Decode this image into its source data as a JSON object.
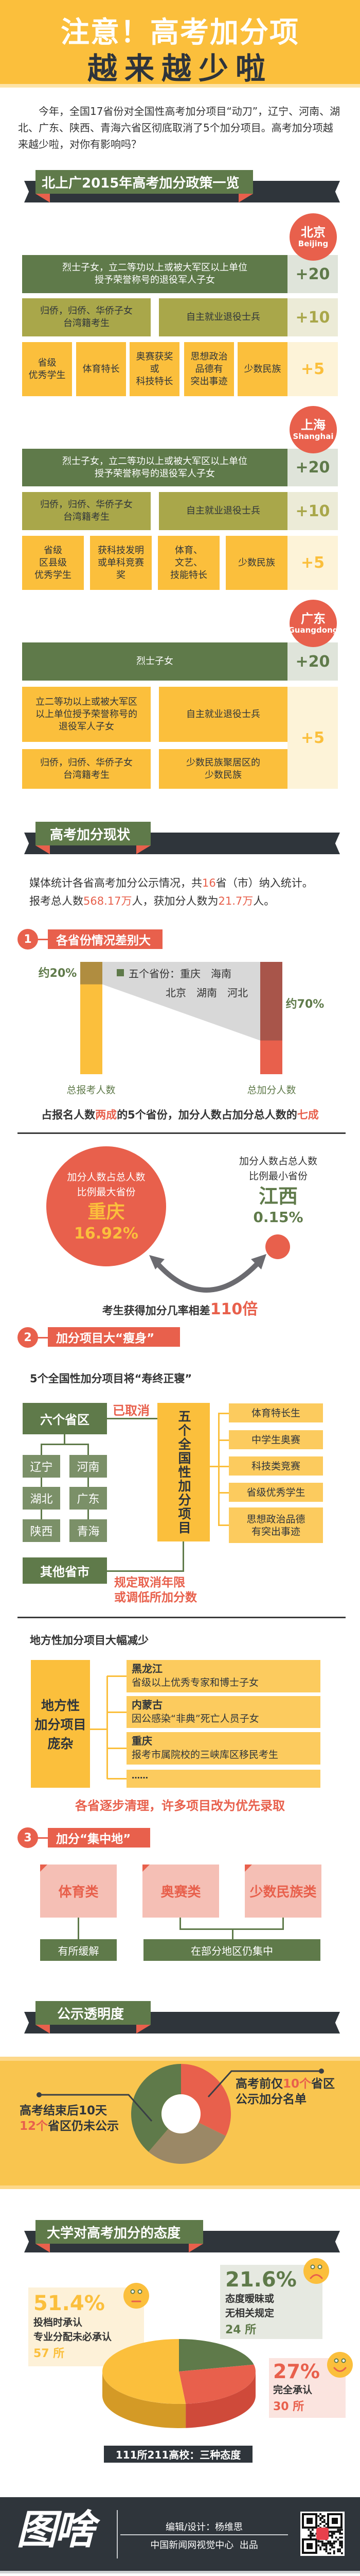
{
  "header": {
    "title_line1": "注意！高考加分项",
    "title_line2": "越来越少啦"
  },
  "intro": {
    "text": "今年，全国17省份对全国性高考加分项目“动刀”，辽宁、河南、湖北、广东、陕西、青海六省区彻底取消了5个加分项目。高考加分项越来越少啦，对你有影响吗？"
  },
  "policy": {
    "title": "北上广2015年高考加分政策一览",
    "regions": [
      {
        "name": "北京",
        "name_en": "Beijing",
        "cells": [
          "烈士子女，立二等功以上或被大军区以上单位\n授予荣誉称号的退役军人子女",
          "归侨，归侨、华侨子女\n台湾籍考生",
          "自主就业退役士兵",
          "省级\n优秀学生",
          "体育特长",
          "奥赛获奖\n或\n科技特长",
          "思想政治\n品德有\n突出事迹",
          "少数民族"
        ],
        "scores": [
          "+20",
          "+10",
          "+5"
        ]
      },
      {
        "name": "上海",
        "name_en": "Shanghai",
        "cells": [
          "烈士子女，立二等功以上或被大军区以上单位\n授予荣誉称号的退役军人子女",
          "归侨，归侨、华侨子女\n台湾籍考生",
          "自主就业退役士兵",
          "省级\n区县级\n优秀学生",
          "获科技发明\n或单科竞赛\n奖",
          "体育、\n文艺、\n技能特长",
          "少数民族"
        ],
        "scores": [
          "+20",
          "+10",
          "+5"
        ]
      },
      {
        "name": "广东",
        "name_en": "Guangdong",
        "cells": [
          "烈士子女",
          "立二等功以上或被大军区\n以上单位授予荣誉称号的\n退役军人子女",
          "自主就业退役士兵",
          "归侨，归侨、华侨子女\n台湾籍考生",
          "少数民族聚居区的\n少数民族"
        ],
        "scores": [
          "+20",
          "+5"
        ]
      }
    ]
  },
  "status": {
    "title": "高考加分现状",
    "stat_parts": [
      "媒体统计各省高考加分公示情况，共",
      "16",
      "省（市）纳入统计。",
      "报考总人数",
      "568.17万",
      "人，获加分人数为",
      "21.7万",
      "人。"
    ],
    "section1": {
      "number": "1",
      "title": "各省份情况差别大"
    },
    "chart_data": {
      "type": "bar",
      "categories": [
        "总报考人数",
        "总加分人数"
      ],
      "series": [
        {
          "name": "五个省份：重庆　海南　北京　湖南　河北",
          "values": [
            20,
            70
          ]
        }
      ],
      "labels": [
        "约20%",
        "约70%"
      ],
      "legend_line1": "五个省份：重庆　海南",
      "legend_line2": "北京　湖南　河北",
      "ylim": [
        0,
        100
      ]
    },
    "summary_parts": [
      "占报名人数",
      "两成",
      "的5个省份，加分人数占加分总人数的",
      "七成"
    ],
    "max": {
      "label_line1": "加分人数占总人数",
      "label_line2": "比例最大省份",
      "province": "重庆",
      "value": "16.92%"
    },
    "min": {
      "label_line1": "加分人数占总人数",
      "label_line2": "比例最小省份",
      "province": "江西",
      "value": "0.15%"
    },
    "gap_parts": [
      "考生获得加分几率相差",
      "110倍"
    ],
    "section2": {
      "number": "2",
      "title": "加分项目大“瘦身”"
    },
    "national_title": "5个全国性加分项目将“寿终正寝”",
    "six": {
      "label": "六个省区",
      "provinces": [
        "辽宁",
        "河南",
        "湖北",
        "广东",
        "陕西",
        "青海"
      ],
      "status": "已取消"
    },
    "five": {
      "label": "五个全国性加分项目",
      "items": [
        "体育特长生",
        "中学生奥赛",
        "科技类竞赛",
        "省级优秀学生",
        "思想政治品德\n有突出事迹"
      ]
    },
    "others": {
      "label": "其他省市",
      "note_line1": "规定取消年限",
      "note_line2": "或调低所加分数"
    },
    "local_title": "地方性加分项目大幅减少",
    "local": {
      "label_lines": [
        "地方性",
        "加分项目",
        "庞杂"
      ],
      "items": [
        {
          "region": "黑龙江",
          "desc": "省级以上优秀专家和博士子女"
        },
        {
          "region": "内蒙古",
          "desc": "因公感染“非典”死亡人员子女"
        },
        {
          "region": "重庆",
          "desc": "报考市属院校的三峡库区移民考生"
        }
      ],
      "more": "……"
    },
    "cleanup": "各省逐步清理，许多项目改为优先录取",
    "section3": {
      "number": "3",
      "title": "加分“集中地”"
    },
    "concentration": {
      "categories": [
        "体育类",
        "奥赛类",
        "少数民族类"
      ],
      "results": [
        "有所缓解",
        "在部分地区仍集中"
      ]
    }
  },
  "transparency": {
    "title": "公示透明度",
    "chart_data": {
      "type": "pie",
      "total_regions": 31,
      "slices": [
        {
          "label": "高考前仅10个省区公示加分名单",
          "value": 10,
          "color": "#e8604c"
        },
        {
          "label": "",
          "value": 9,
          "color": "#9b8866"
        },
        {
          "label": "高考结束后10天12个省区仍未公示",
          "value": 12,
          "color": "#5f7a4a"
        }
      ]
    },
    "right_parts": [
      "高考前仅",
      "10个",
      "省区"
    ],
    "right_line2": "公示加分名单",
    "left_line1": "高考结束后10天",
    "left_parts": [
      "12个",
      "省区仍未公示"
    ]
  },
  "universities": {
    "title": "大学对高考加分的态度",
    "chart_data": {
      "type": "pie",
      "slices": [
        {
          "label": "投档时承认 专业分配未必承认",
          "value": 51.4,
          "count": "57 所",
          "color": "#fbbf3c",
          "face": "neutral"
        },
        {
          "label": "态度暧昧或无相关规定",
          "value": 21.6,
          "count": "24 所",
          "color": "#5f7a4a",
          "face": "sad"
        },
        {
          "label": "完全承认",
          "value": 27,
          "count": "30 所",
          "color": "#e8604c",
          "face": "happy"
        }
      ]
    },
    "box_a": {
      "pct": "51.4%",
      "line1": "投档时承认",
      "line2": "专业分配未必承认",
      "count": "57 所"
    },
    "box_b": {
      "pct": "21.6%",
      "line1": "态度暧昧或",
      "line2": "无相关规定",
      "count": "24 所"
    },
    "box_c": {
      "pct": "27%",
      "line1": "完全承认",
      "count": "30 所"
    },
    "caption": "111所211高校：三种态度"
  },
  "footer": {
    "logo": "图啥",
    "credit": "编辑/设计：杨维思",
    "producer": "中国新闻网视觉中心  出品",
    "qr_logo": "中新网"
  }
}
